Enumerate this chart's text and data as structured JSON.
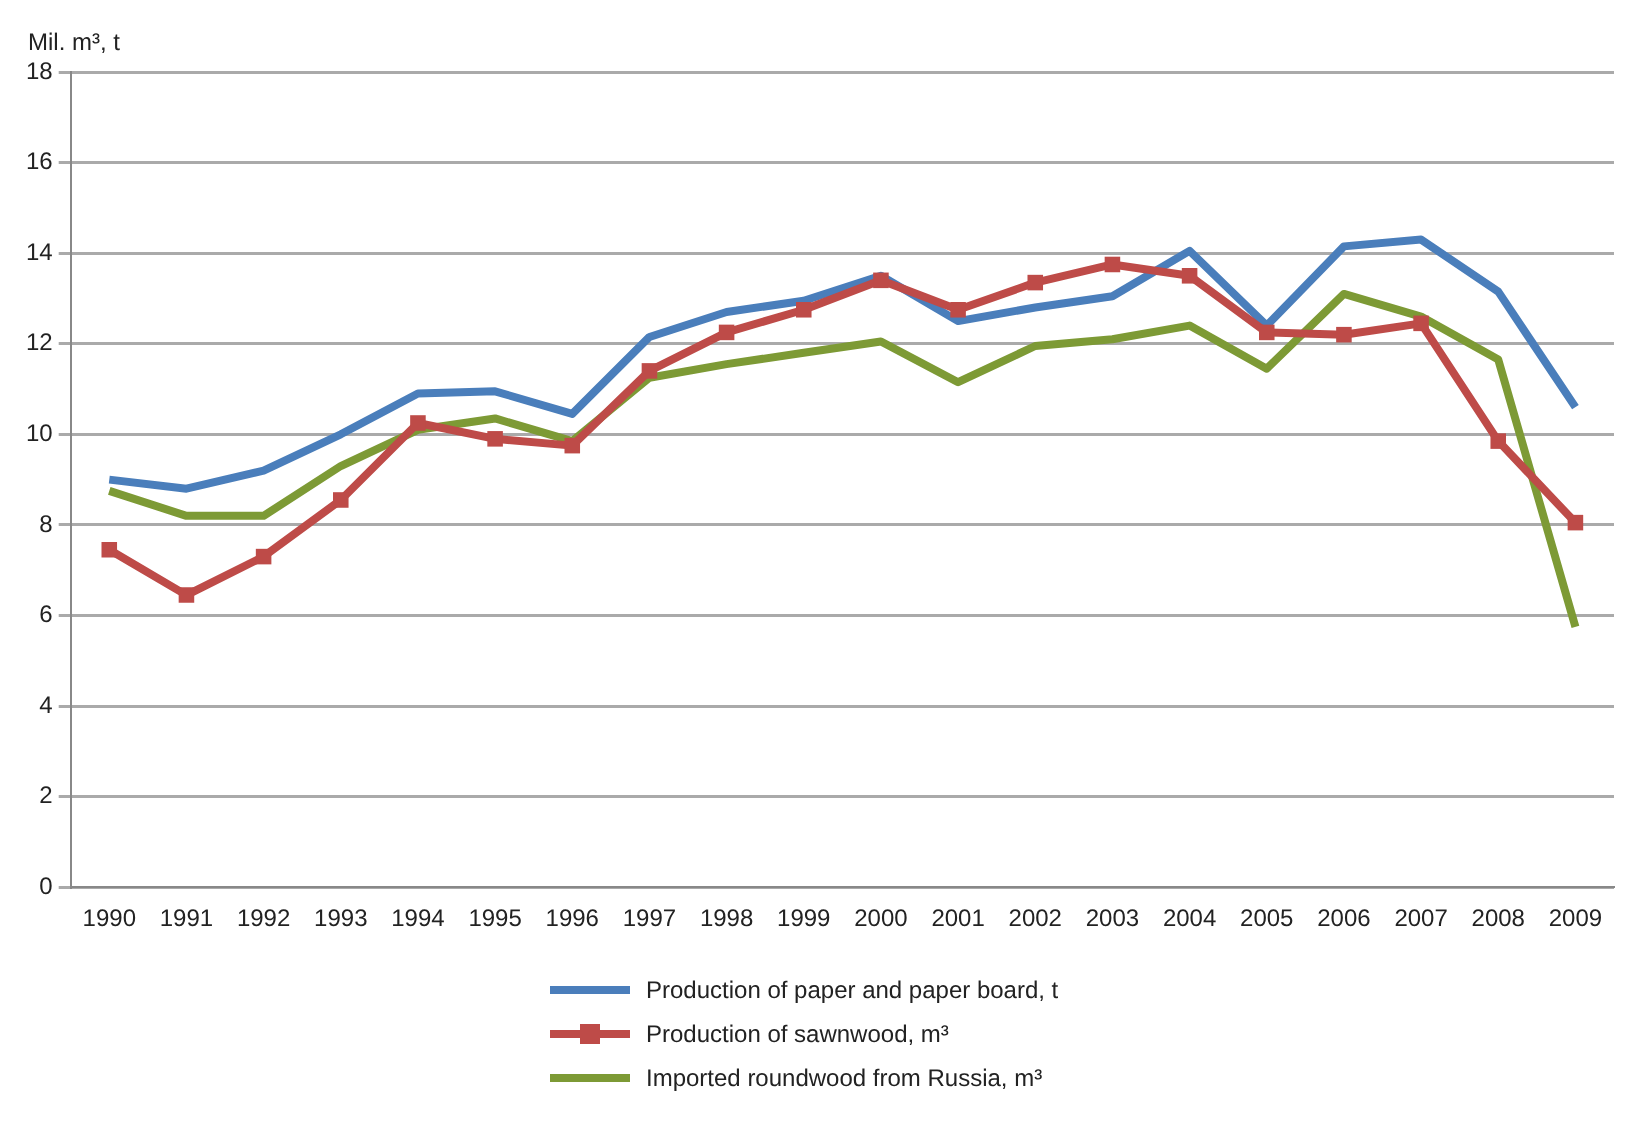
{
  "chart_data": {
    "type": "line",
    "ylabel": "Mil. m³, t",
    "categories": [
      "1990",
      "1991",
      "1992",
      "1993",
      "1994",
      "1995",
      "1996",
      "1997",
      "1998",
      "1999",
      "2000",
      "2001",
      "2002",
      "2003",
      "2004",
      "2005",
      "2006",
      "2007",
      "2008",
      "2009"
    ],
    "series": [
      {
        "name": "Production of paper and paper board, t",
        "color": "#4a7ebb",
        "marker": "none",
        "values": [
          9.0,
          8.8,
          9.2,
          10.0,
          10.9,
          10.95,
          10.45,
          12.15,
          12.7,
          12.95,
          13.5,
          12.5,
          12.8,
          13.05,
          14.05,
          12.4,
          14.15,
          14.3,
          13.15,
          10.6
        ]
      },
      {
        "name": "Production of sawnwood, m³",
        "color": "#be4b48",
        "marker": "square",
        "values": [
          7.45,
          6.45,
          7.3,
          8.55,
          10.25,
          9.9,
          9.75,
          11.4,
          12.25,
          12.75,
          13.4,
          12.75,
          13.35,
          13.75,
          13.5,
          12.25,
          12.2,
          12.45,
          9.85,
          8.05
        ]
      },
      {
        "name": "Imported roundwood from Russia, m³",
        "color": "#7d9a35",
        "marker": "none",
        "values": [
          8.75,
          8.2,
          8.2,
          9.3,
          10.1,
          10.35,
          9.85,
          11.25,
          11.55,
          11.8,
          12.05,
          11.15,
          11.95,
          12.1,
          12.4,
          11.45,
          13.1,
          12.6,
          11.65,
          5.75
        ]
      }
    ],
    "ylim": [
      0,
      18
    ],
    "yticks": [
      0,
      2,
      4,
      6,
      8,
      10,
      12,
      14,
      16,
      18
    ],
    "grid": "y",
    "legend": "bottom"
  }
}
